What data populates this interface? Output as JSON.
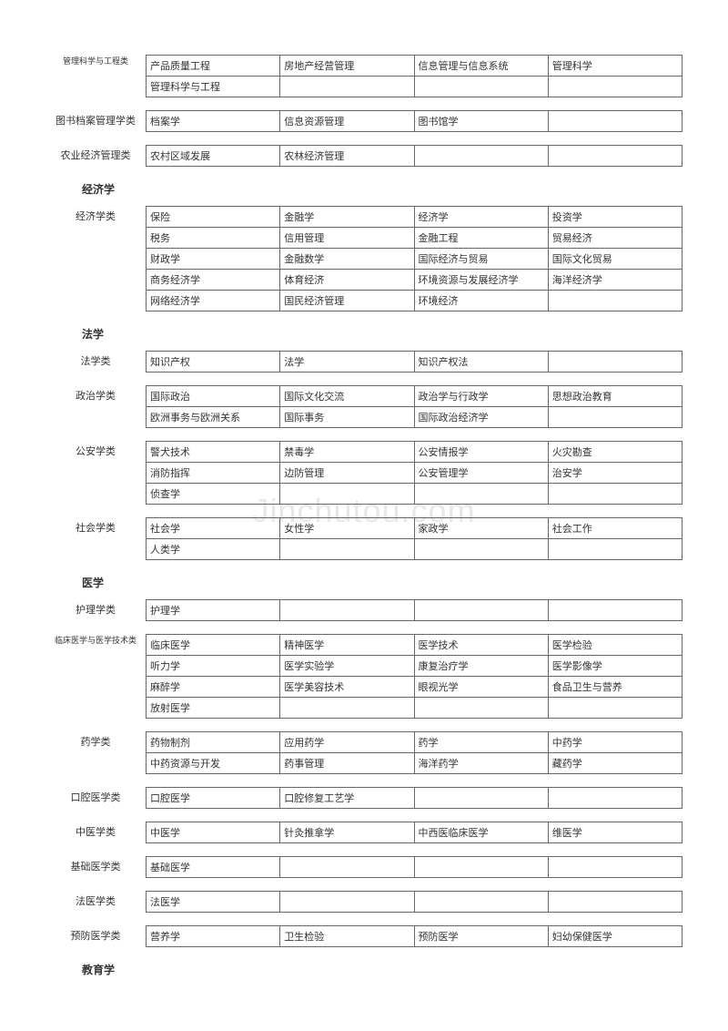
{
  "watermark": "Jinchutou.com",
  "groups": [
    {
      "heading": null,
      "subgroups": [
        {
          "label": "管理科学与工程类",
          "labelSmall": true,
          "rows": [
            [
              "产品质量工程",
              "房地产经营管理",
              "信息管理与信息系统",
              "管理科学"
            ],
            [
              "管理科学与工程",
              "",
              "",
              ""
            ]
          ]
        },
        {
          "label": "图书档案管理学类",
          "rows": [
            [
              "档案学",
              "信息资源管理",
              "图书馆学",
              ""
            ]
          ]
        },
        {
          "label": "农业经济管理类",
          "rows": [
            [
              "农村区域发展",
              "农林经济管理",
              "",
              ""
            ]
          ]
        }
      ]
    },
    {
      "heading": "经济学",
      "subgroups": [
        {
          "label": "经济学类",
          "rows": [
            [
              "保险",
              "金融学",
              "经济学",
              "投资学"
            ],
            [
              "税务",
              "信用管理",
              "金融工程",
              "贸易经济"
            ],
            [
              "财政学",
              "金融数学",
              "国际经济与贸易",
              "国际文化贸易"
            ],
            [
              "商务经济学",
              "体育经济",
              "环境资源与发展经济学",
              "海洋经济学"
            ],
            [
              "网络经济学",
              "国民经济管理",
              "环境经济",
              ""
            ]
          ]
        }
      ]
    },
    {
      "heading": "法学",
      "subgroups": [
        {
          "label": "法学类",
          "rows": [
            [
              "知识产权",
              "法学",
              "知识产权法",
              ""
            ]
          ]
        },
        {
          "label": "政治学类",
          "rows": [
            [
              "国际政治",
              "国际文化交流",
              "政治学与行政学",
              "思想政治教育"
            ],
            [
              "欧洲事务与欧洲关系",
              "国际事务",
              "国际政治经济学",
              ""
            ]
          ]
        },
        {
          "label": "公安学类",
          "rows": [
            [
              "警犬技术",
              "禁毒学",
              "公安情报学",
              "火灾勘查"
            ],
            [
              "消防指挥",
              "边防管理",
              "公安管理学",
              "治安学"
            ],
            [
              "侦查学",
              "",
              "",
              ""
            ]
          ]
        },
        {
          "label": "社会学类",
          "rows": [
            [
              "社会学",
              "女性学",
              "家政学",
              "社会工作"
            ],
            [
              "人类学",
              "",
              "",
              ""
            ]
          ]
        }
      ]
    },
    {
      "heading": "医学",
      "subgroups": [
        {
          "label": "护理学类",
          "rows": [
            [
              "护理学",
              "",
              "",
              ""
            ]
          ]
        },
        {
          "label": "临床医学与医学技术类",
          "labelSmall": true,
          "rows": [
            [
              "临床医学",
              "精神医学",
              "医学技术",
              "医学检验"
            ],
            [
              "听力学",
              "医学实验学",
              "康复治疗学",
              "医学影像学"
            ],
            [
              "麻醉学",
              "医学美容技术",
              "眼视光学",
              "食品卫生与营养"
            ],
            [
              "放射医学",
              "",
              "",
              ""
            ]
          ]
        },
        {
          "label": "药学类",
          "rows": [
            [
              "药物制剂",
              "应用药学",
              "药学",
              "中药学"
            ],
            [
              "中药资源与开发",
              "药事管理",
              "海洋药学",
              "藏药学"
            ]
          ]
        },
        {
          "label": "口腔医学类",
          "rows": [
            [
              "口腔医学",
              "口腔修复工艺学",
              "",
              ""
            ]
          ]
        },
        {
          "label": "中医学类",
          "rows": [
            [
              "中医学",
              "针灸推拿学",
              "中西医临床医学",
              "维医学"
            ]
          ]
        },
        {
          "label": "基础医学类",
          "rows": [
            [
              "基础医学",
              "",
              "",
              ""
            ]
          ]
        },
        {
          "label": "法医学类",
          "rows": [
            [
              "法医学",
              "",
              "",
              ""
            ]
          ]
        },
        {
          "label": "预防医学类",
          "rows": [
            [
              "营养学",
              "卫生检验",
              "预防医学",
              "妇幼保健医学"
            ]
          ]
        }
      ]
    },
    {
      "heading": "教育学",
      "subgroups": []
    }
  ]
}
